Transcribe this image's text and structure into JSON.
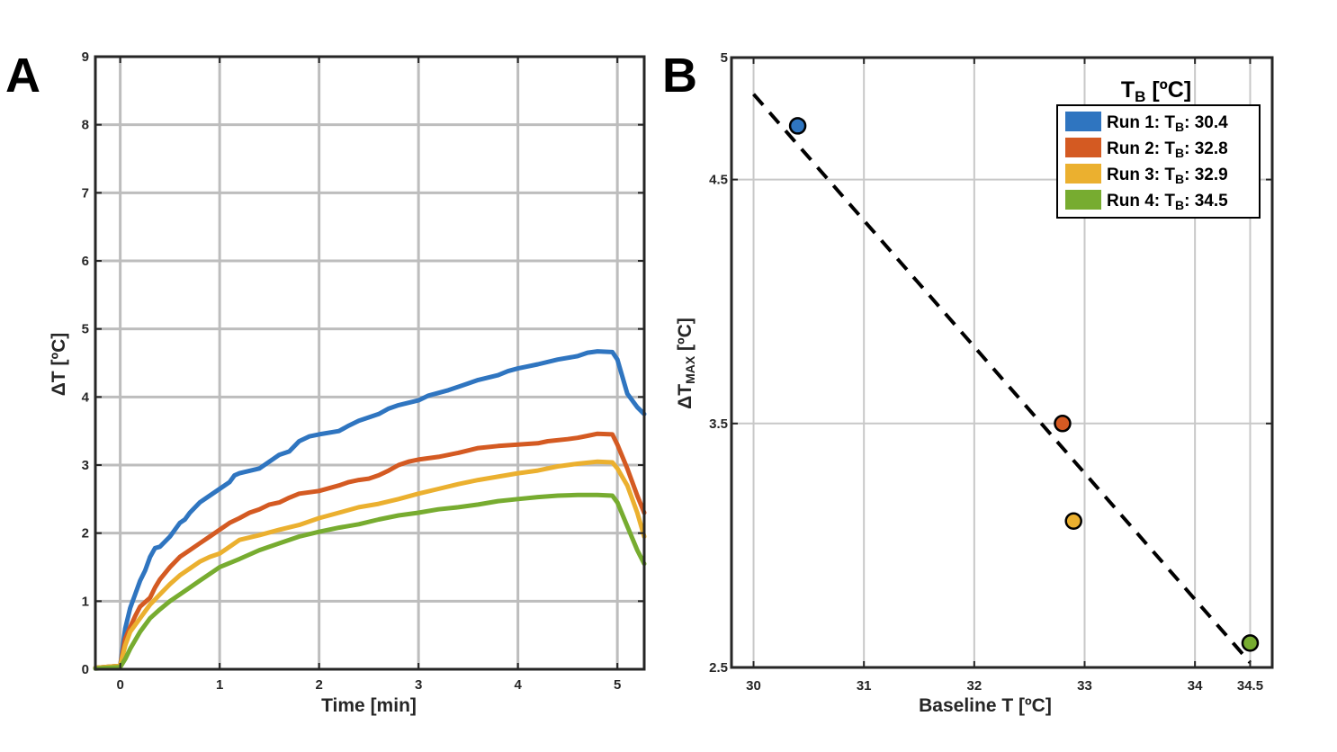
{
  "chart_data": [
    {
      "type": "line",
      "panel_label": "A",
      "xlabel": "Time [min]",
      "ylabel": "ΔT [ºC]",
      "xlim": [
        -0.25,
        5.27
      ],
      "ylim": [
        0,
        9
      ],
      "xticks": [
        0,
        1,
        2,
        3,
        4,
        5
      ],
      "yticks": [
        0,
        1,
        2,
        3,
        4,
        5,
        6,
        7,
        8,
        9
      ],
      "grid": true,
      "series": [
        {
          "color": "#2F75C0",
          "x": [
            -0.25,
            0.0,
            0.05,
            0.1,
            0.15,
            0.2,
            0.25,
            0.3,
            0.35,
            0.4,
            0.5,
            0.6,
            0.65,
            0.7,
            0.8,
            0.9,
            1.0,
            1.1,
            1.15,
            1.2,
            1.4,
            1.5,
            1.6,
            1.7,
            1.8,
            1.9,
            2.0,
            2.2,
            2.3,
            2.4,
            2.5,
            2.6,
            2.7,
            2.8,
            3.0,
            3.1,
            3.3,
            3.5,
            3.6,
            3.8,
            3.9,
            4.0,
            4.1,
            4.2,
            4.4,
            4.6,
            4.7,
            4.8,
            4.95,
            5.0,
            5.1,
            5.2,
            5.27
          ],
          "y": [
            0.02,
            0.05,
            0.6,
            0.9,
            1.1,
            1.3,
            1.45,
            1.65,
            1.78,
            1.8,
            1.95,
            2.15,
            2.2,
            2.3,
            2.45,
            2.55,
            2.65,
            2.75,
            2.85,
            2.88,
            2.95,
            3.05,
            3.15,
            3.2,
            3.35,
            3.42,
            3.45,
            3.5,
            3.58,
            3.65,
            3.7,
            3.75,
            3.83,
            3.88,
            3.95,
            4.02,
            4.1,
            4.2,
            4.25,
            4.32,
            4.38,
            4.42,
            4.45,
            4.48,
            4.55,
            4.6,
            4.65,
            4.67,
            4.66,
            4.55,
            4.05,
            3.85,
            3.75
          ]
        },
        {
          "color": "#D45A22",
          "x": [
            -0.25,
            0.0,
            0.05,
            0.1,
            0.15,
            0.2,
            0.3,
            0.35,
            0.4,
            0.5,
            0.6,
            0.7,
            0.8,
            0.9,
            1.0,
            1.1,
            1.2,
            1.3,
            1.4,
            1.5,
            1.6,
            1.7,
            1.8,
            1.9,
            2.0,
            2.2,
            2.3,
            2.4,
            2.5,
            2.6,
            2.7,
            2.8,
            2.9,
            3.0,
            3.2,
            3.4,
            3.6,
            3.8,
            4.0,
            4.2,
            4.3,
            4.5,
            4.6,
            4.7,
            4.8,
            4.95,
            5.0,
            5.1,
            5.2,
            5.27
          ],
          "y": [
            0.02,
            0.05,
            0.45,
            0.62,
            0.78,
            0.92,
            1.05,
            1.2,
            1.32,
            1.5,
            1.65,
            1.75,
            1.85,
            1.95,
            2.05,
            2.15,
            2.22,
            2.3,
            2.35,
            2.42,
            2.45,
            2.52,
            2.58,
            2.6,
            2.62,
            2.7,
            2.75,
            2.78,
            2.8,
            2.85,
            2.92,
            3.0,
            3.05,
            3.08,
            3.12,
            3.18,
            3.25,
            3.28,
            3.3,
            3.32,
            3.35,
            3.38,
            3.4,
            3.43,
            3.46,
            3.45,
            3.3,
            2.95,
            2.55,
            2.3
          ]
        },
        {
          "color": "#EBB02F",
          "x": [
            -0.25,
            0.0,
            0.05,
            0.1,
            0.2,
            0.3,
            0.4,
            0.5,
            0.6,
            0.7,
            0.8,
            0.9,
            1.0,
            1.1,
            1.2,
            1.4,
            1.6,
            1.8,
            2.0,
            2.2,
            2.4,
            2.6,
            2.8,
            3.0,
            3.2,
            3.4,
            3.6,
            3.8,
            4.0,
            4.2,
            4.4,
            4.6,
            4.8,
            4.95,
            5.0,
            5.1,
            5.2,
            5.27
          ],
          "y": [
            0.02,
            0.05,
            0.35,
            0.55,
            0.75,
            0.95,
            1.1,
            1.25,
            1.38,
            1.48,
            1.58,
            1.65,
            1.7,
            1.8,
            1.9,
            1.97,
            2.05,
            2.12,
            2.22,
            2.3,
            2.38,
            2.43,
            2.5,
            2.58,
            2.65,
            2.72,
            2.78,
            2.83,
            2.88,
            2.92,
            2.98,
            3.02,
            3.05,
            3.04,
            2.95,
            2.7,
            2.3,
            1.95
          ]
        },
        {
          "color": "#77AC30",
          "x": [
            -0.25,
            0.0,
            0.05,
            0.1,
            0.2,
            0.3,
            0.4,
            0.5,
            0.6,
            0.7,
            0.8,
            0.9,
            1.0,
            1.2,
            1.4,
            1.6,
            1.8,
            2.0,
            2.2,
            2.4,
            2.6,
            2.8,
            3.0,
            3.2,
            3.4,
            3.6,
            3.8,
            4.0,
            4.2,
            4.4,
            4.6,
            4.8,
            4.95,
            5.0,
            5.1,
            5.2,
            5.27
          ],
          "y": [
            0.01,
            0.03,
            0.15,
            0.3,
            0.55,
            0.75,
            0.88,
            1.0,
            1.1,
            1.2,
            1.3,
            1.4,
            1.5,
            1.62,
            1.75,
            1.85,
            1.95,
            2.02,
            2.08,
            2.13,
            2.2,
            2.26,
            2.3,
            2.35,
            2.38,
            2.42,
            2.47,
            2.5,
            2.53,
            2.55,
            2.56,
            2.56,
            2.55,
            2.45,
            2.1,
            1.75,
            1.55
          ]
        }
      ]
    },
    {
      "type": "scatter",
      "panel_label": "B",
      "xlabel": "Baseline T [ºC]",
      "ylabel": "ΔT",
      "ylabel_sub": "MAX",
      "ylabel_suffix": " [ºC]",
      "xlim": [
        29.8,
        34.7
      ],
      "ylim": [
        2.5,
        5
      ],
      "xticks": [
        30,
        31,
        32,
        33,
        34,
        34.5
      ],
      "yticks": [
        2.5,
        3.5,
        4.5,
        5
      ],
      "grid": true,
      "legend_title": "T",
      "legend_title_sub": "B",
      "legend_title_suffix": " [ºC]",
      "legend_position": "top-right",
      "points": [
        {
          "x": 30.4,
          "y": 4.72,
          "color": "#2F75C0",
          "run": "Run 1: T",
          "sub": "B",
          "value": ": 30.4"
        },
        {
          "x": 32.8,
          "y": 3.5,
          "color": "#D45A22",
          "run": "Run 2: T",
          "sub": "B",
          "value": ": 32.8"
        },
        {
          "x": 32.9,
          "y": 3.1,
          "color": "#EBB02F",
          "run": "Run 3: T",
          "sub": "B",
          "value": ": 32.9"
        },
        {
          "x": 34.5,
          "y": 2.6,
          "color": "#77AC30",
          "run": "Run 4: T",
          "sub": "B",
          "value": ": 34.5"
        }
      ],
      "fit_line": {
        "x": [
          30.0,
          34.5
        ],
        "y": [
          4.85,
          2.52
        ],
        "style": "dashed",
        "color": "#000000"
      }
    }
  ]
}
